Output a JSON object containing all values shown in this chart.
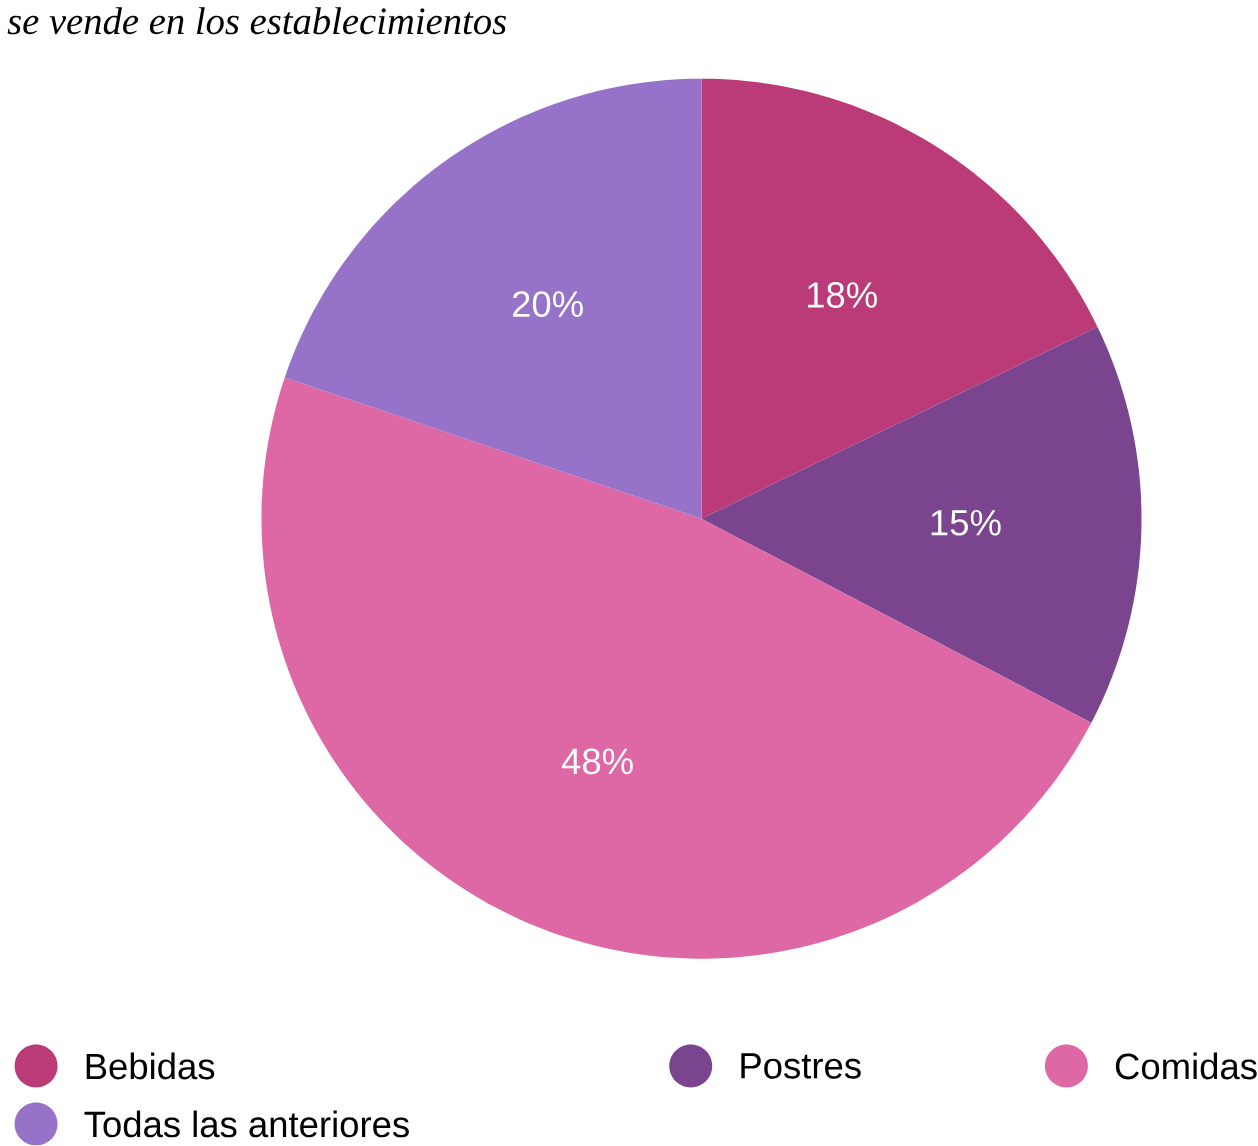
{
  "chart_data": {
    "type": "pie",
    "title": "se vende en los establecimientos",
    "categories": [
      "Bebidas",
      "Postres",
      "Comidas",
      "Todas las anteriores"
    ],
    "values": [
      18,
      15,
      48,
      20
    ],
    "value_labels": [
      "18%",
      "15%",
      "48%",
      "20%"
    ],
    "colors": [
      "#bb3a78",
      "#7b448e",
      "#de67a5",
      "#9673c8"
    ],
    "legend": "bottom"
  }
}
